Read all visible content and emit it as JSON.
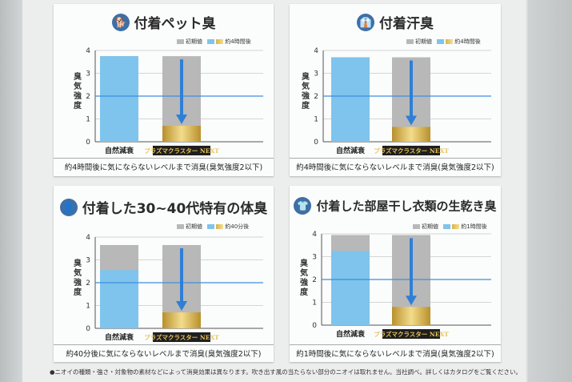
{
  "footnote": "●ニオイの種類・強さ・対象物の素材などによって消臭効果は異なります。吹き出す風の当たらない部分のニオイは取れません。当社調べ。詳しくはカタログをご覧ください。",
  "chart_data": [
    {
      "type": "bar",
      "title": "付着ペット臭",
      "icon": "pet-icon",
      "ylabel": "臭気強度",
      "ylim": [
        0,
        4
      ],
      "yticks": [
        "0",
        "1",
        "2",
        "3",
        "4"
      ],
      "threshold": 2,
      "categories": [
        "自然減衰",
        "プラズマクラスター NEXT"
      ],
      "legend": [
        "初期値",
        "約4時間後"
      ],
      "series": [
        {
          "name": "初期値",
          "values": [
            3.75,
            3.75
          ]
        },
        {
          "name": "約4時間後",
          "values": [
            3.75,
            0.7
          ]
        }
      ],
      "caption": "約4時間後に気にならないレベルまで消臭(臭気強度2以下)"
    },
    {
      "type": "bar",
      "title": "付着汗臭",
      "icon": "shirt-icon",
      "ylabel": "臭気強度",
      "ylim": [
        0,
        4
      ],
      "yticks": [
        "0",
        "1",
        "2",
        "3",
        "4"
      ],
      "threshold": 2,
      "categories": [
        "自然減衰",
        "プラズマクラスター NEXT"
      ],
      "legend": [
        "初期値",
        "約4時間後"
      ],
      "series": [
        {
          "name": "初期値",
          "values": [
            3.7,
            3.7
          ]
        },
        {
          "name": "約4時間後",
          "values": [
            3.7,
            0.65
          ]
        }
      ],
      "caption": "約4時間後に気にならないレベルまで消臭(臭気強度2以下)"
    },
    {
      "type": "bar",
      "title": "付着した30~40代特有の体臭",
      "icon": "person-icon",
      "ylabel": "臭気強度",
      "ylim": [
        0,
        4
      ],
      "yticks": [
        "0",
        "1",
        "2",
        "3",
        "4"
      ],
      "threshold": 2,
      "categories": [
        "自然減衰",
        "プラズマクラスター NEXT"
      ],
      "legend": [
        "初期値",
        "約40分後"
      ],
      "series": [
        {
          "name": "初期値",
          "values": [
            3.65,
            3.65
          ]
        },
        {
          "name": "約40分後",
          "values": [
            2.55,
            0.7
          ]
        }
      ],
      "caption": "約40分後に気にならないレベルまで消臭(臭気強度2以下)"
    },
    {
      "type": "bar",
      "title": "付着した部屋干し衣類の生乾き臭",
      "icon": "laundry-icon",
      "ylabel": "臭気強度",
      "ylim": [
        0,
        4
      ],
      "yticks": [
        "0",
        "1",
        "2",
        "3",
        "4"
      ],
      "threshold": 2,
      "categories": [
        "自然減衰",
        "プラズマクラスター NEXT"
      ],
      "legend": [
        "初期値",
        "約1時間後"
      ],
      "series": [
        {
          "name": "初期値",
          "values": [
            3.95,
            3.95
          ]
        },
        {
          "name": "約1時間後",
          "values": [
            3.25,
            0.8
          ]
        }
      ],
      "caption": "約1時間後に気にならないレベルまで消臭(臭気強度2以下)"
    }
  ],
  "colors": {
    "initial": "#b8b8b8",
    "natural_after": "#7ec4ec",
    "threshold_line": "#3d8ee0",
    "arrow": "#2f7fd6",
    "gold": "#d6b046",
    "brand_bg": "#1f1f1f"
  },
  "icons": {
    "card1": "🐕",
    "card2": "👔",
    "card3": "👤",
    "card4": "👕"
  }
}
